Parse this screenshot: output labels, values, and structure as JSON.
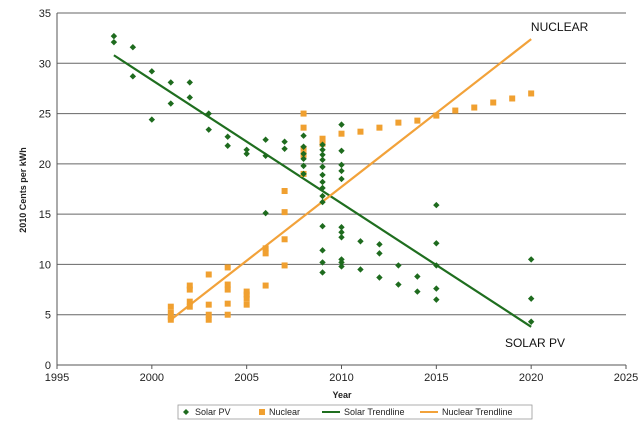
{
  "chart_data": {
    "type": "scatter",
    "xlabel": "Year",
    "ylabel": "2010 Cents per kWh",
    "xlim": [
      1995,
      2025
    ],
    "ylim": [
      0,
      35
    ],
    "xticks": [
      1995,
      2000,
      2005,
      2010,
      2015,
      2020,
      2025
    ],
    "yticks": [
      0,
      5,
      10,
      15,
      20,
      25,
      30,
      35
    ],
    "grid": "horizontal",
    "legend_position": "bottom",
    "colors": {
      "solar": "#1e6b1e",
      "nuclear": "#f0a030",
      "solar_line": "#1f6e1f",
      "nuclear_line": "#f2a23a",
      "grid": "#666666"
    },
    "annotations": [
      {
        "text": "NUCLEAR",
        "x": 2021.5,
        "y": 33.2
      },
      {
        "text": "SOLAR PV",
        "x": 2020.2,
        "y": 1.8
      }
    ],
    "series": [
      {
        "name": "Solar PV",
        "marker": "diamond",
        "points": [
          [
            1998,
            32.7
          ],
          [
            1998,
            32.1
          ],
          [
            1999,
            31.6
          ],
          [
            1999,
            28.7
          ],
          [
            2000,
            29.2
          ],
          [
            2000,
            24.4
          ],
          [
            2001,
            28.1
          ],
          [
            2001,
            26.0
          ],
          [
            2002,
            28.1
          ],
          [
            2002,
            26.6
          ],
          [
            2003,
            25.0
          ],
          [
            2003,
            23.4
          ],
          [
            2004,
            22.7
          ],
          [
            2004,
            21.8
          ],
          [
            2005,
            21.4
          ],
          [
            2005,
            21.0
          ],
          [
            2006,
            22.4
          ],
          [
            2006,
            20.8
          ],
          [
            2006,
            15.1
          ],
          [
            2007,
            22.2
          ],
          [
            2007,
            21.5
          ],
          [
            2008,
            22.8
          ],
          [
            2008,
            21.7
          ],
          [
            2008,
            21.0
          ],
          [
            2008,
            20.5
          ],
          [
            2008,
            19.8
          ],
          [
            2008,
            19.0
          ],
          [
            2009,
            21.9
          ],
          [
            2009,
            21.4
          ],
          [
            2009,
            20.9
          ],
          [
            2009,
            20.4
          ],
          [
            2009,
            19.7
          ],
          [
            2009,
            18.9
          ],
          [
            2009,
            18.2
          ],
          [
            2009,
            17.6
          ],
          [
            2009,
            16.8
          ],
          [
            2009,
            16.2
          ],
          [
            2009,
            13.8
          ],
          [
            2009,
            11.4
          ],
          [
            2009,
            10.2
          ],
          [
            2009,
            9.2
          ],
          [
            2010,
            23.9
          ],
          [
            2010,
            21.3
          ],
          [
            2010,
            19.9
          ],
          [
            2010,
            19.3
          ],
          [
            2010,
            18.5
          ],
          [
            2010,
            13.7
          ],
          [
            2010,
            13.2
          ],
          [
            2010,
            12.7
          ],
          [
            2010,
            10.5
          ],
          [
            2010,
            10.2
          ],
          [
            2010,
            9.8
          ],
          [
            2011,
            12.3
          ],
          [
            2011,
            9.5
          ],
          [
            2012,
            12.0
          ],
          [
            2012,
            11.1
          ],
          [
            2012,
            8.7
          ],
          [
            2013,
            9.9
          ],
          [
            2013,
            8.0
          ],
          [
            2014,
            8.8
          ],
          [
            2014,
            7.3
          ],
          [
            2015,
            15.9
          ],
          [
            2015,
            12.1
          ],
          [
            2015,
            9.9
          ],
          [
            2015,
            7.6
          ],
          [
            2015,
            6.5
          ],
          [
            2020,
            10.5
          ],
          [
            2020,
            6.6
          ],
          [
            2020,
            4.3
          ]
        ]
      },
      {
        "name": "Nuclear",
        "marker": "square",
        "points": [
          [
            2001,
            5.8
          ],
          [
            2001,
            5.2
          ],
          [
            2001,
            4.8
          ],
          [
            2001,
            4.5
          ],
          [
            2002,
            7.9
          ],
          [
            2002,
            7.5
          ],
          [
            2002,
            6.3
          ],
          [
            2002,
            5.8
          ],
          [
            2003,
            9.0
          ],
          [
            2003,
            6.0
          ],
          [
            2003,
            5.0
          ],
          [
            2003,
            4.5
          ],
          [
            2004,
            9.7
          ],
          [
            2004,
            8.0
          ],
          [
            2004,
            7.5
          ],
          [
            2004,
            6.1
          ],
          [
            2004,
            5.0
          ],
          [
            2005,
            7.3
          ],
          [
            2005,
            7.0
          ],
          [
            2005,
            6.6
          ],
          [
            2005,
            6.0
          ],
          [
            2006,
            11.6
          ],
          [
            2006,
            11.1
          ],
          [
            2006,
            7.9
          ],
          [
            2007,
            17.3
          ],
          [
            2007,
            15.2
          ],
          [
            2007,
            12.5
          ],
          [
            2007,
            9.9
          ],
          [
            2008,
            25.0
          ],
          [
            2008,
            23.6
          ],
          [
            2008,
            21.5
          ],
          [
            2008,
            20.9
          ],
          [
            2008,
            19.0
          ],
          [
            2009,
            22.5
          ],
          [
            2009,
            22.0
          ],
          [
            2010,
            23.0
          ],
          [
            2011,
            23.2
          ],
          [
            2012,
            23.6
          ],
          [
            2013,
            24.1
          ],
          [
            2014,
            24.3
          ],
          [
            2015,
            24.8
          ],
          [
            2016,
            25.3
          ],
          [
            2017,
            25.6
          ],
          [
            2018,
            26.1
          ],
          [
            2019,
            26.5
          ],
          [
            2020,
            27.0
          ]
        ]
      },
      {
        "name": "Solar Trendline",
        "type": "line",
        "points": [
          [
            1998,
            30.8
          ],
          [
            2020,
            3.8
          ]
        ]
      },
      {
        "name": "Nuclear Trendline",
        "type": "line",
        "points": [
          [
            2001,
            4.5
          ],
          [
            2020,
            32.4
          ]
        ]
      }
    ]
  }
}
